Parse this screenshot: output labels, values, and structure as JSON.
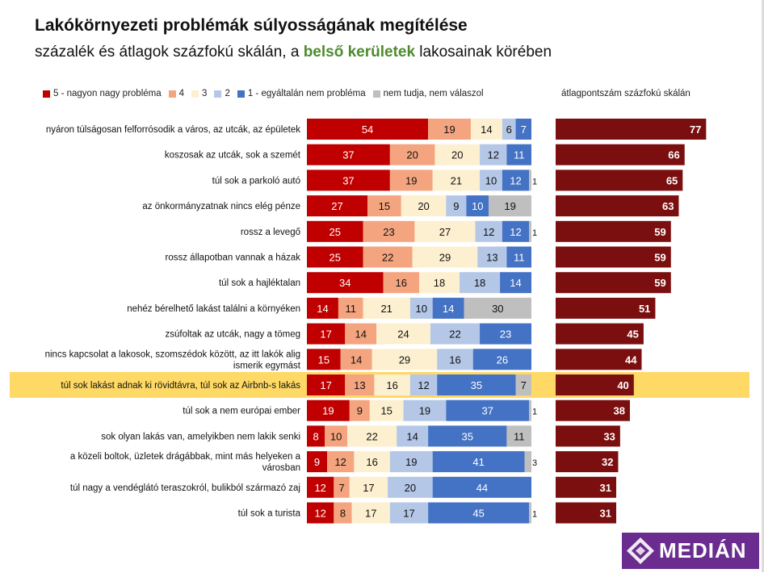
{
  "header": {
    "title": "Lakókörnyezeti problémák súlyosságának megítélése",
    "subtitle_pre": "százalék és átlagok százfokú skálán, a ",
    "subtitle_hl": "belső kerületek",
    "subtitle_post": " lakosainak körében"
  },
  "legend": [
    {
      "label": "5 - nagyon nagy probléma",
      "color": "#c00000"
    },
    {
      "label": "4",
      "color": "#f4a57f"
    },
    {
      "label": "3",
      "color": "#fdf0d0"
    },
    {
      "label": "2",
      "color": "#b4c7e7"
    },
    {
      "label": "1 - egyáltalán nem probléma",
      "color": "#4472c4"
    },
    {
      "label": "nem tudja, nem válaszol",
      "color": "#bfbfbf"
    }
  ],
  "avg_title": "átlagpontszám százfokú skálán",
  "colors": {
    "s5": "#c00000",
    "s4": "#f4a57f",
    "s3": "#fdf0d0",
    "s2": "#b4c7e7",
    "s1": "#4472c4",
    "na": "#bfbfbf",
    "avg": "#7b0f0f",
    "highlight": "#ffd966"
  },
  "logo": {
    "text": "MEDIÁN"
  },
  "chart_data": {
    "type": "bar",
    "stacked": true,
    "highlight_index": 10,
    "categories": [
      [
        "nyáron túlságosan felforrósodik a város, az utcák, az épületek"
      ],
      [
        "koszosak az utcák, sok a szemét"
      ],
      [
        "túl sok a parkoló autó"
      ],
      [
        "az önkormányzatnak nincs elég pénze"
      ],
      [
        "rossz a levegő"
      ],
      [
        "rossz állapotban vannak a házak"
      ],
      [
        "túl sok a hajléktalan"
      ],
      [
        "nehéz bérelhető lakást találni a környéken"
      ],
      [
        "zsúfoltak az utcák, nagy a tömeg"
      ],
      [
        "nincs kapcsolat a lakosok, szomszédok között, az itt lakók alig",
        "ismerik egymást"
      ],
      [
        "túl sok lakást adnak ki rövidtávra, túl sok az Airbnb-s lakás"
      ],
      [
        "túl sok a nem európai ember"
      ],
      [
        "sok olyan lakás van, amelyikben nem lakik senki"
      ],
      [
        "a közeli boltok, üzletek drágábbak, mint más helyeken a",
        "városban"
      ],
      [
        "túl nagy a vendéglátó teraszokról, bulikból származó zaj"
      ],
      [
        "túl sok a turista"
      ]
    ],
    "series": [
      {
        "name": "5 - nagyon nagy probléma",
        "values": [
          54,
          37,
          37,
          27,
          25,
          25,
          34,
          14,
          17,
          15,
          17,
          19,
          8,
          9,
          12,
          12
        ]
      },
      {
        "name": "4",
        "values": [
          19,
          20,
          19,
          15,
          23,
          22,
          16,
          11,
          14,
          14,
          13,
          9,
          10,
          12,
          7,
          8
        ]
      },
      {
        "name": "3",
        "values": [
          14,
          20,
          21,
          20,
          27,
          29,
          18,
          21,
          24,
          29,
          16,
          15,
          22,
          16,
          17,
          17
        ]
      },
      {
        "name": "2",
        "values": [
          6,
          12,
          10,
          9,
          12,
          13,
          18,
          10,
          22,
          16,
          12,
          19,
          14,
          19,
          20,
          17
        ]
      },
      {
        "name": "1 - egyáltalán nem probléma",
        "values": [
          7,
          11,
          12,
          10,
          12,
          11,
          14,
          14,
          23,
          26,
          35,
          37,
          35,
          41,
          44,
          45
        ]
      },
      {
        "name": "nem tudja, nem válaszol",
        "values": [
          0,
          0,
          1,
          19,
          1,
          0,
          0,
          30,
          0,
          0,
          7,
          1,
          11,
          3,
          0,
          1
        ]
      }
    ],
    "averages": [
      77,
      66,
      65,
      63,
      59,
      59,
      59,
      51,
      45,
      44,
      40,
      38,
      33,
      32,
      31,
      31
    ],
    "xlim": [
      0,
      100
    ],
    "avg_xlim": [
      0,
      100
    ]
  }
}
